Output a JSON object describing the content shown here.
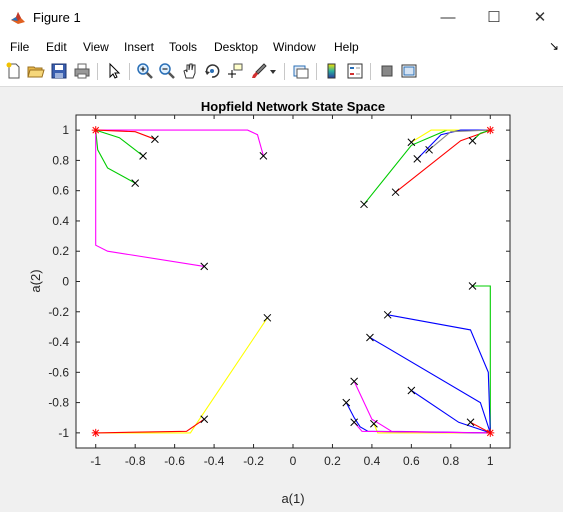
{
  "window": {
    "title": "Figure 1",
    "minimize_glyph": "—",
    "maximize_glyph": "☐",
    "close_glyph": "✕"
  },
  "menu": [
    "File",
    "Edit",
    "View",
    "Insert",
    "Tools",
    "Desktop",
    "Window",
    "Help"
  ],
  "menu_overflow": "↘",
  "toolbar": [
    "new-figure-icon",
    "open-file-icon",
    "save-icon",
    "print-icon",
    "pointer-icon",
    "zoom-in-icon",
    "zoom-out-icon",
    "pan-icon",
    "rotate-3d-icon",
    "data-cursor-icon",
    "brush-icon",
    "brush-dropdown-icon",
    "link-plot-icon",
    "colorbar-icon",
    "legend-icon",
    "hide-plot-tools-icon",
    "show-plot-tools-icon"
  ],
  "chart_data": {
    "type": "line",
    "title": "Hopfield Network State Space",
    "xlabel": "a(1)",
    "ylabel": "a(2)",
    "xlim": [
      -1.1,
      1.1
    ],
    "ylim": [
      -1.1,
      1.1
    ],
    "xticks": [
      -1,
      -0.8,
      -0.6,
      -0.4,
      -0.2,
      0,
      0.2,
      0.4,
      0.6,
      0.8,
      1
    ],
    "yticks": [
      -1,
      -0.8,
      -0.6,
      -0.4,
      -0.2,
      0,
      0.2,
      0.4,
      0.6,
      0.8,
      1
    ],
    "xtick_labels": [
      "-1",
      "-0.8",
      "-0.6",
      "-0.4",
      "-0.2",
      "0",
      "0.2",
      "0.4",
      "0.6",
      "0.8",
      "1"
    ],
    "ytick_labels": [
      "-1",
      "-0.8",
      "-0.6",
      "-0.4",
      "-0.2",
      "0",
      "0.2",
      "0.4",
      "0.6",
      "0.8",
      "1"
    ],
    "grid": false,
    "equilibria": [
      [
        -1,
        1
      ],
      [
        1,
        1
      ],
      [
        -1,
        -1
      ],
      [
        1,
        -1
      ]
    ],
    "trajectories": [
      {
        "color": "#ff00ff",
        "points": [
          [
            -0.15,
            0.83
          ],
          [
            -0.18,
            0.97
          ],
          [
            -0.23,
            1.0
          ],
          [
            -1,
            1
          ]
        ]
      },
      {
        "color": "#ff0000",
        "points": [
          [
            -0.7,
            0.94
          ],
          [
            -0.8,
            0.99
          ],
          [
            -1,
            1
          ]
        ]
      },
      {
        "color": "#00cc00",
        "points": [
          [
            -0.76,
            0.83
          ],
          [
            -0.88,
            0.95
          ],
          [
            -1,
            1
          ]
        ]
      },
      {
        "color": "#00cc00",
        "points": [
          [
            -0.8,
            0.65
          ],
          [
            -0.94,
            0.75
          ],
          [
            -0.99,
            0.87
          ],
          [
            -1,
            1
          ]
        ]
      },
      {
        "color": "#ff00ff",
        "points": [
          [
            -0.45,
            0.1
          ],
          [
            -0.94,
            0.2
          ],
          [
            -1,
            0.24
          ],
          [
            -1,
            1
          ]
        ]
      },
      {
        "color": "#00cc00",
        "points": [
          [
            0.36,
            0.51
          ],
          [
            0.6,
            0.9
          ],
          [
            0.78,
            1.0
          ],
          [
            1,
            1
          ]
        ]
      },
      {
        "color": "#ffff00",
        "points": [
          [
            0.6,
            0.92
          ],
          [
            0.7,
            1.0
          ],
          [
            1,
            1
          ]
        ]
      },
      {
        "color": "#0000ff",
        "points": [
          [
            0.63,
            0.81
          ],
          [
            0.75,
            0.97
          ],
          [
            0.85,
            1.0
          ],
          [
            1,
            1
          ]
        ]
      },
      {
        "color": "#888888",
        "points": [
          [
            0.69,
            0.87
          ],
          [
            0.8,
            0.99
          ],
          [
            1,
            1
          ]
        ]
      },
      {
        "color": "#ff0000",
        "points": [
          [
            0.52,
            0.59
          ],
          [
            0.85,
            0.93
          ],
          [
            1,
            1
          ]
        ]
      },
      {
        "color": "#00cc00",
        "points": [
          [
            0.91,
            0.93
          ],
          [
            0.95,
            0.98
          ],
          [
            1,
            1
          ]
        ]
      },
      {
        "color": "#ffff00",
        "points": [
          [
            -0.13,
            -0.24
          ],
          [
            -0.5,
            -0.96
          ],
          [
            -0.52,
            -1.0
          ],
          [
            -1,
            -1
          ]
        ]
      },
      {
        "color": "#ff0000",
        "points": [
          [
            -0.45,
            -0.91
          ],
          [
            -0.54,
            -0.99
          ],
          [
            -1,
            -1
          ]
        ]
      },
      {
        "color": "#00cc00",
        "points": [
          [
            0.91,
            -0.03
          ],
          [
            1.0,
            -0.03
          ],
          [
            1.0,
            -0.45
          ],
          [
            1,
            -1
          ]
        ]
      },
      {
        "color": "#0000ff",
        "points": [
          [
            0.48,
            -0.22
          ],
          [
            0.9,
            -0.32
          ],
          [
            0.99,
            -0.6
          ],
          [
            1,
            -1
          ]
        ]
      },
      {
        "color": "#0000ff",
        "points": [
          [
            0.39,
            -0.37
          ],
          [
            0.95,
            -0.8
          ],
          [
            1,
            -1
          ]
        ]
      },
      {
        "color": "#0000ff",
        "points": [
          [
            0.6,
            -0.72
          ],
          [
            0.84,
            -0.93
          ],
          [
            1,
            -1
          ]
        ]
      },
      {
        "color": "#ff0000",
        "points": [
          [
            0.9,
            -0.93
          ],
          [
            1,
            -1
          ]
        ]
      },
      {
        "color": "#ff00ff",
        "points": [
          [
            0.31,
            -0.66
          ],
          [
            0.4,
            -0.91
          ],
          [
            0.5,
            -0.99
          ],
          [
            1,
            -1
          ]
        ]
      },
      {
        "color": "#ffff00",
        "points": [
          [
            0.41,
            -0.94
          ],
          [
            0.43,
            -1.0
          ],
          [
            1,
            -1
          ]
        ]
      },
      {
        "color": "#0000ff",
        "points": [
          [
            0.27,
            -0.8
          ],
          [
            0.31,
            -0.9
          ],
          [
            0.34,
            -0.96
          ],
          [
            0.38,
            -0.99
          ],
          [
            1,
            -1
          ]
        ]
      },
      {
        "color": "#ff00ff",
        "points": [
          [
            0.31,
            -0.93
          ],
          [
            0.35,
            -0.99
          ],
          [
            1,
            -1
          ]
        ]
      }
    ]
  }
}
